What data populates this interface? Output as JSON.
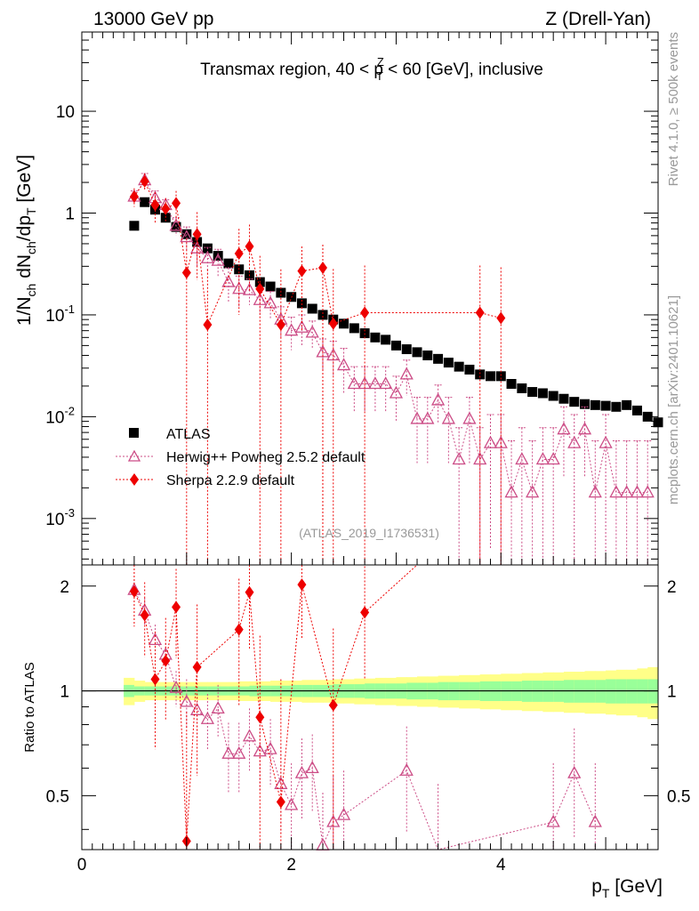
{
  "header": {
    "left": "13000 GeV pp",
    "right": "Z (Drell-Yan)"
  },
  "side_labels": {
    "rivet": "Rivet 4.1.0, ≥ 500k events",
    "mcplots": "mcplots.cern.ch [arXiv:2401.10621]"
  },
  "colors": {
    "atlas": "#000000",
    "herwig": "#cc4c86",
    "sherpa": "#ee0000",
    "band_inner": "#99ff99",
    "band_outer": "#ffff88"
  },
  "chart_data": {
    "type": "scatter",
    "title": "Transmax region, 40 < p_T^Z < 60 [GeV], inclusive",
    "title_parts": {
      "pre": "Transmax region, 40 < p",
      "sub": "T",
      "sup": "Z",
      "post": " < 60 [GeV], inclusive"
    },
    "watermark": "(ATLAS_2019_I1736531)",
    "xlabel": "p_T [GeV]",
    "xlabel_parts": {
      "main": "p",
      "sub": "T",
      "unit": " [GeV]"
    },
    "ylabel": "1/N_ch dN_ch/dp_T [GeV]",
    "ylabel_parts": {
      "a": "1/N",
      "a_sub": "ch",
      "b": " dN",
      "b_sub": "ch",
      "c": "/dp",
      "c_sub": "T",
      "d": " [GeV]"
    },
    "ratio_ylabel": "Ratio to ATLAS",
    "xlim": [
      0,
      5.5
    ],
    "ylim": [
      0.00035,
      60
    ],
    "ratio_ylim": [
      0.35,
      2.3
    ],
    "x_ticks": [
      "0",
      "2",
      "4"
    ],
    "y_ticks": [
      {
        "base": "10",
        "exp": "-3"
      },
      {
        "base": "10",
        "exp": "-2"
      },
      {
        "base": "10",
        "exp": "-1"
      },
      {
        "base": "1",
        "exp": ""
      },
      {
        "base": "10",
        "exp": ""
      }
    ],
    "ratio_ticks": [
      "0.5",
      "1",
      "2"
    ],
    "legend": [
      {
        "key": "atlas",
        "label": "ATLAS"
      },
      {
        "key": "herwig",
        "label": "Herwig++ Powheg 2.5.2 default"
      },
      {
        "key": "sherpa",
        "label": "Sherpa 2.2.9 default"
      }
    ],
    "series": [
      {
        "name": "ATLAS",
        "x": [
          0.5,
          0.6,
          0.7,
          0.8,
          0.9,
          1.0,
          1.1,
          1.2,
          1.3,
          1.4,
          1.5,
          1.6,
          1.7,
          1.8,
          1.9,
          2.0,
          2.1,
          2.2,
          2.3,
          2.4,
          2.5,
          2.6,
          2.7,
          2.8,
          2.9,
          3.0,
          3.1,
          3.2,
          3.3,
          3.4,
          3.5,
          3.6,
          3.7,
          3.8,
          3.9,
          4.0,
          4.1,
          4.2,
          4.3,
          4.4,
          4.5,
          4.6,
          4.7,
          4.8,
          4.9,
          5.0,
          5.1,
          5.2,
          5.3,
          5.4,
          5.5
        ],
        "values": [
          0.75,
          1.28,
          1.08,
          0.9,
          0.73,
          0.62,
          0.52,
          0.45,
          0.38,
          0.32,
          0.28,
          0.245,
          0.21,
          0.19,
          0.165,
          0.15,
          0.13,
          0.115,
          0.1,
          0.09,
          0.082,
          0.074,
          0.066,
          0.06,
          0.057,
          0.05,
          0.046,
          0.043,
          0.04,
          0.037,
          0.034,
          0.031,
          0.029,
          0.026,
          0.025,
          0.025,
          0.021,
          0.019,
          0.0175,
          0.017,
          0.016,
          0.015,
          0.014,
          0.0133,
          0.013,
          0.0128,
          0.0125,
          0.013,
          0.0115,
          0.01,
          0.0088
        ]
      },
      {
        "name": "Herwig++ Powheg 2.5.2 default",
        "x": [
          0.5,
          0.6,
          0.7,
          0.8,
          0.9,
          1.0,
          1.1,
          1.2,
          1.3,
          1.4,
          1.5,
          1.6,
          1.7,
          1.8,
          1.9,
          2.0,
          2.1,
          2.2,
          2.3,
          2.4,
          2.5,
          2.6,
          2.7,
          2.8,
          2.9,
          3.0,
          3.1,
          3.2,
          3.3,
          3.4,
          3.5,
          3.6,
          3.7,
          3.8,
          3.9,
          4.0,
          4.1,
          4.2,
          4.3,
          4.4,
          4.5,
          4.6,
          4.7,
          4.8,
          4.9,
          5.0,
          5.1,
          5.2,
          5.3,
          5.4
        ],
        "values": [
          1.45,
          2.1,
          1.4,
          1.2,
          0.75,
          0.58,
          0.45,
          0.36,
          0.34,
          0.21,
          0.18,
          0.175,
          0.14,
          0.13,
          0.09,
          0.07,
          0.075,
          0.067,
          0.043,
          0.04,
          0.032,
          0.021,
          0.021,
          0.021,
          0.021,
          0.017,
          0.026,
          0.0095,
          0.0095,
          0.0145,
          0.0095,
          0.0038,
          0.0095,
          0.0038,
          0.0055,
          0.0055,
          0.0018,
          0.0038,
          0.0018,
          0.0038,
          0.0038,
          0.0075,
          0.0055,
          0.0075,
          0.0018,
          0.0055,
          0.0018,
          0.0018,
          0.0018,
          0.0018
        ],
        "err_up": [
          0.2,
          0.35,
          0.25,
          0.15,
          0.15,
          0.15,
          0.15,
          0.1,
          0.1,
          0.08,
          0.06,
          0.05,
          0.04,
          0.04,
          0.03,
          0.025,
          0.025,
          0.02,
          0.015,
          0.015,
          0.015,
          0.01,
          0.01,
          0.01,
          0.01,
          0.008,
          0.01,
          0.006,
          0.006,
          0.006,
          0.006,
          0.004,
          0.006,
          0.004,
          0.005,
          0.005,
          0.004,
          0.004,
          0.004,
          0.004,
          0.004,
          0.005,
          0.005,
          0.005,
          0.004,
          0.005,
          0.004,
          0.004,
          0.004,
          0.004
        ],
        "err_dn": [
          0.2,
          0.35,
          0.25,
          0.15,
          0.15,
          0.15,
          0.15,
          0.1,
          0.1,
          0.08,
          0.06,
          0.05,
          0.04,
          0.04,
          0.03,
          0.025,
          0.025,
          0.02,
          0.015,
          0.015,
          0.015,
          0.01,
          0.01,
          0.01,
          0.01,
          0.008,
          0.01,
          0.006,
          0.006,
          0.006,
          0.006,
          0.0038,
          0.006,
          0.0038,
          0.005,
          0.0055,
          0.0018,
          0.0038,
          0.0018,
          0.0038,
          0.0038,
          0.005,
          0.0055,
          0.005,
          0.0018,
          0.0055,
          0.0018,
          0.0018,
          0.0018,
          0.0018
        ]
      },
      {
        "name": "Sherpa 2.2.9 default",
        "x": [
          0.5,
          0.6,
          0.7,
          0.8,
          0.9,
          1.0,
          1.1,
          1.2,
          1.5,
          1.6,
          1.7,
          1.9,
          2.1,
          2.3,
          2.4,
          2.7,
          3.8,
          4.0
        ],
        "values": [
          1.45,
          2.05,
          1.2,
          1.1,
          1.25,
          0.26,
          0.62,
          0.08,
          0.4,
          0.47,
          0.18,
          0.08,
          0.27,
          0.29,
          0.082,
          0.105,
          0.105,
          0.093
        ],
        "err_up": [
          0.3,
          0.4,
          0.4,
          0.3,
          0.4,
          0.3,
          0.4,
          0.2,
          0.3,
          0.3,
          0.2,
          0.2,
          0.2,
          0.2,
          0.2,
          0.2,
          0.2,
          0.2
        ],
        "err_dn": [
          0.3,
          0.4,
          0.4,
          0.3,
          0.4,
          0.26,
          0.4,
          0.08,
          0.3,
          0.3,
          0.18,
          0.08,
          0.2,
          0.29,
          0.082,
          0.105,
          0.105,
          0.093
        ]
      }
    ],
    "ratio": {
      "band_x": [
        0.45,
        0.55,
        0.65,
        0.75,
        0.85,
        0.95,
        1.05,
        1.15,
        1.25,
        1.35,
        1.45,
        1.55,
        1.65,
        1.75,
        1.85,
        1.95,
        2.05,
        2.15,
        2.25,
        2.35,
        2.45,
        2.55,
        2.65,
        2.75,
        2.85,
        2.95,
        3.05,
        3.15,
        3.25,
        3.35,
        3.45,
        3.55,
        3.65,
        3.75,
        3.85,
        3.95,
        4.05,
        4.15,
        4.25,
        4.35,
        4.45,
        4.55,
        4.65,
        4.75,
        4.85,
        4.95,
        5.05,
        5.15,
        5.25,
        5.35,
        5.45
      ],
      "band_inner": [
        0.04,
        0.03,
        0.03,
        0.03,
        0.03,
        0.03,
        0.03,
        0.03,
        0.03,
        0.03,
        0.03,
        0.03,
        0.035,
        0.035,
        0.035,
        0.035,
        0.04,
        0.04,
        0.04,
        0.04,
        0.045,
        0.045,
        0.045,
        0.05,
        0.05,
        0.05,
        0.05,
        0.055,
        0.055,
        0.055,
        0.06,
        0.06,
        0.06,
        0.06,
        0.065,
        0.065,
        0.065,
        0.065,
        0.07,
        0.07,
        0.07,
        0.07,
        0.075,
        0.075,
        0.075,
        0.075,
        0.08,
        0.08,
        0.08,
        0.08,
        0.08
      ],
      "band_outer": [
        0.09,
        0.07,
        0.06,
        0.06,
        0.06,
        0.06,
        0.06,
        0.06,
        0.06,
        0.06,
        0.06,
        0.065,
        0.065,
        0.065,
        0.07,
        0.07,
        0.07,
        0.075,
        0.075,
        0.075,
        0.08,
        0.08,
        0.085,
        0.085,
        0.09,
        0.09,
        0.095,
        0.095,
        0.1,
        0.1,
        0.105,
        0.105,
        0.11,
        0.11,
        0.115,
        0.115,
        0.12,
        0.12,
        0.125,
        0.125,
        0.13,
        0.13,
        0.135,
        0.135,
        0.14,
        0.14,
        0.145,
        0.15,
        0.15,
        0.16,
        0.17
      ],
      "herwig_x": [
        0.5,
        0.6,
        0.7,
        0.8,
        0.9,
        1.0,
        1.1,
        1.2,
        1.3,
        1.4,
        1.5,
        1.6,
        1.7,
        1.8,
        1.9,
        2.0,
        2.1,
        2.2,
        2.3,
        2.4,
        2.5,
        3.1,
        3.4,
        4.5,
        4.7,
        4.9
      ],
      "herwig": [
        1.95,
        1.7,
        1.4,
        1.27,
        1.02,
        0.93,
        0.88,
        0.83,
        0.89,
        0.66,
        0.66,
        0.74,
        0.67,
        0.68,
        0.54,
        0.47,
        0.58,
        0.6,
        0.36,
        0.42,
        0.44,
        0.59,
        0.34,
        0.42,
        0.58,
        0.42
      ],
      "herwig_err": [
        0.1,
        0.15,
        0.15,
        0.1,
        0.12,
        0.15,
        0.15,
        0.15,
        0.15,
        0.15,
        0.15,
        0.15,
        0.15,
        0.15,
        0.15,
        0.15,
        0.15,
        0.15,
        0.15,
        0.15,
        0.15,
        0.2,
        0.2,
        0.2,
        0.2,
        0.2
      ],
      "sherpa_x": [
        0.5,
        0.6,
        0.7,
        0.8,
        0.9,
        1.0,
        1.1,
        1.5,
        1.6,
        1.7,
        1.9,
        2.1,
        2.4,
        2.7
      ],
      "sherpa": [
        1.93,
        1.65,
        1.08,
        1.22,
        1.74,
        0.37,
        1.17,
        1.5,
        1.92,
        0.84,
        0.48,
        2.02,
        0.91,
        1.68
      ],
      "sherpa_err": [
        0.4,
        0.4,
        0.4,
        0.4,
        0.5,
        0.5,
        0.6,
        0.6,
        0.6,
        0.6,
        0.6,
        0.6,
        0.6,
        0.6
      ]
    }
  }
}
